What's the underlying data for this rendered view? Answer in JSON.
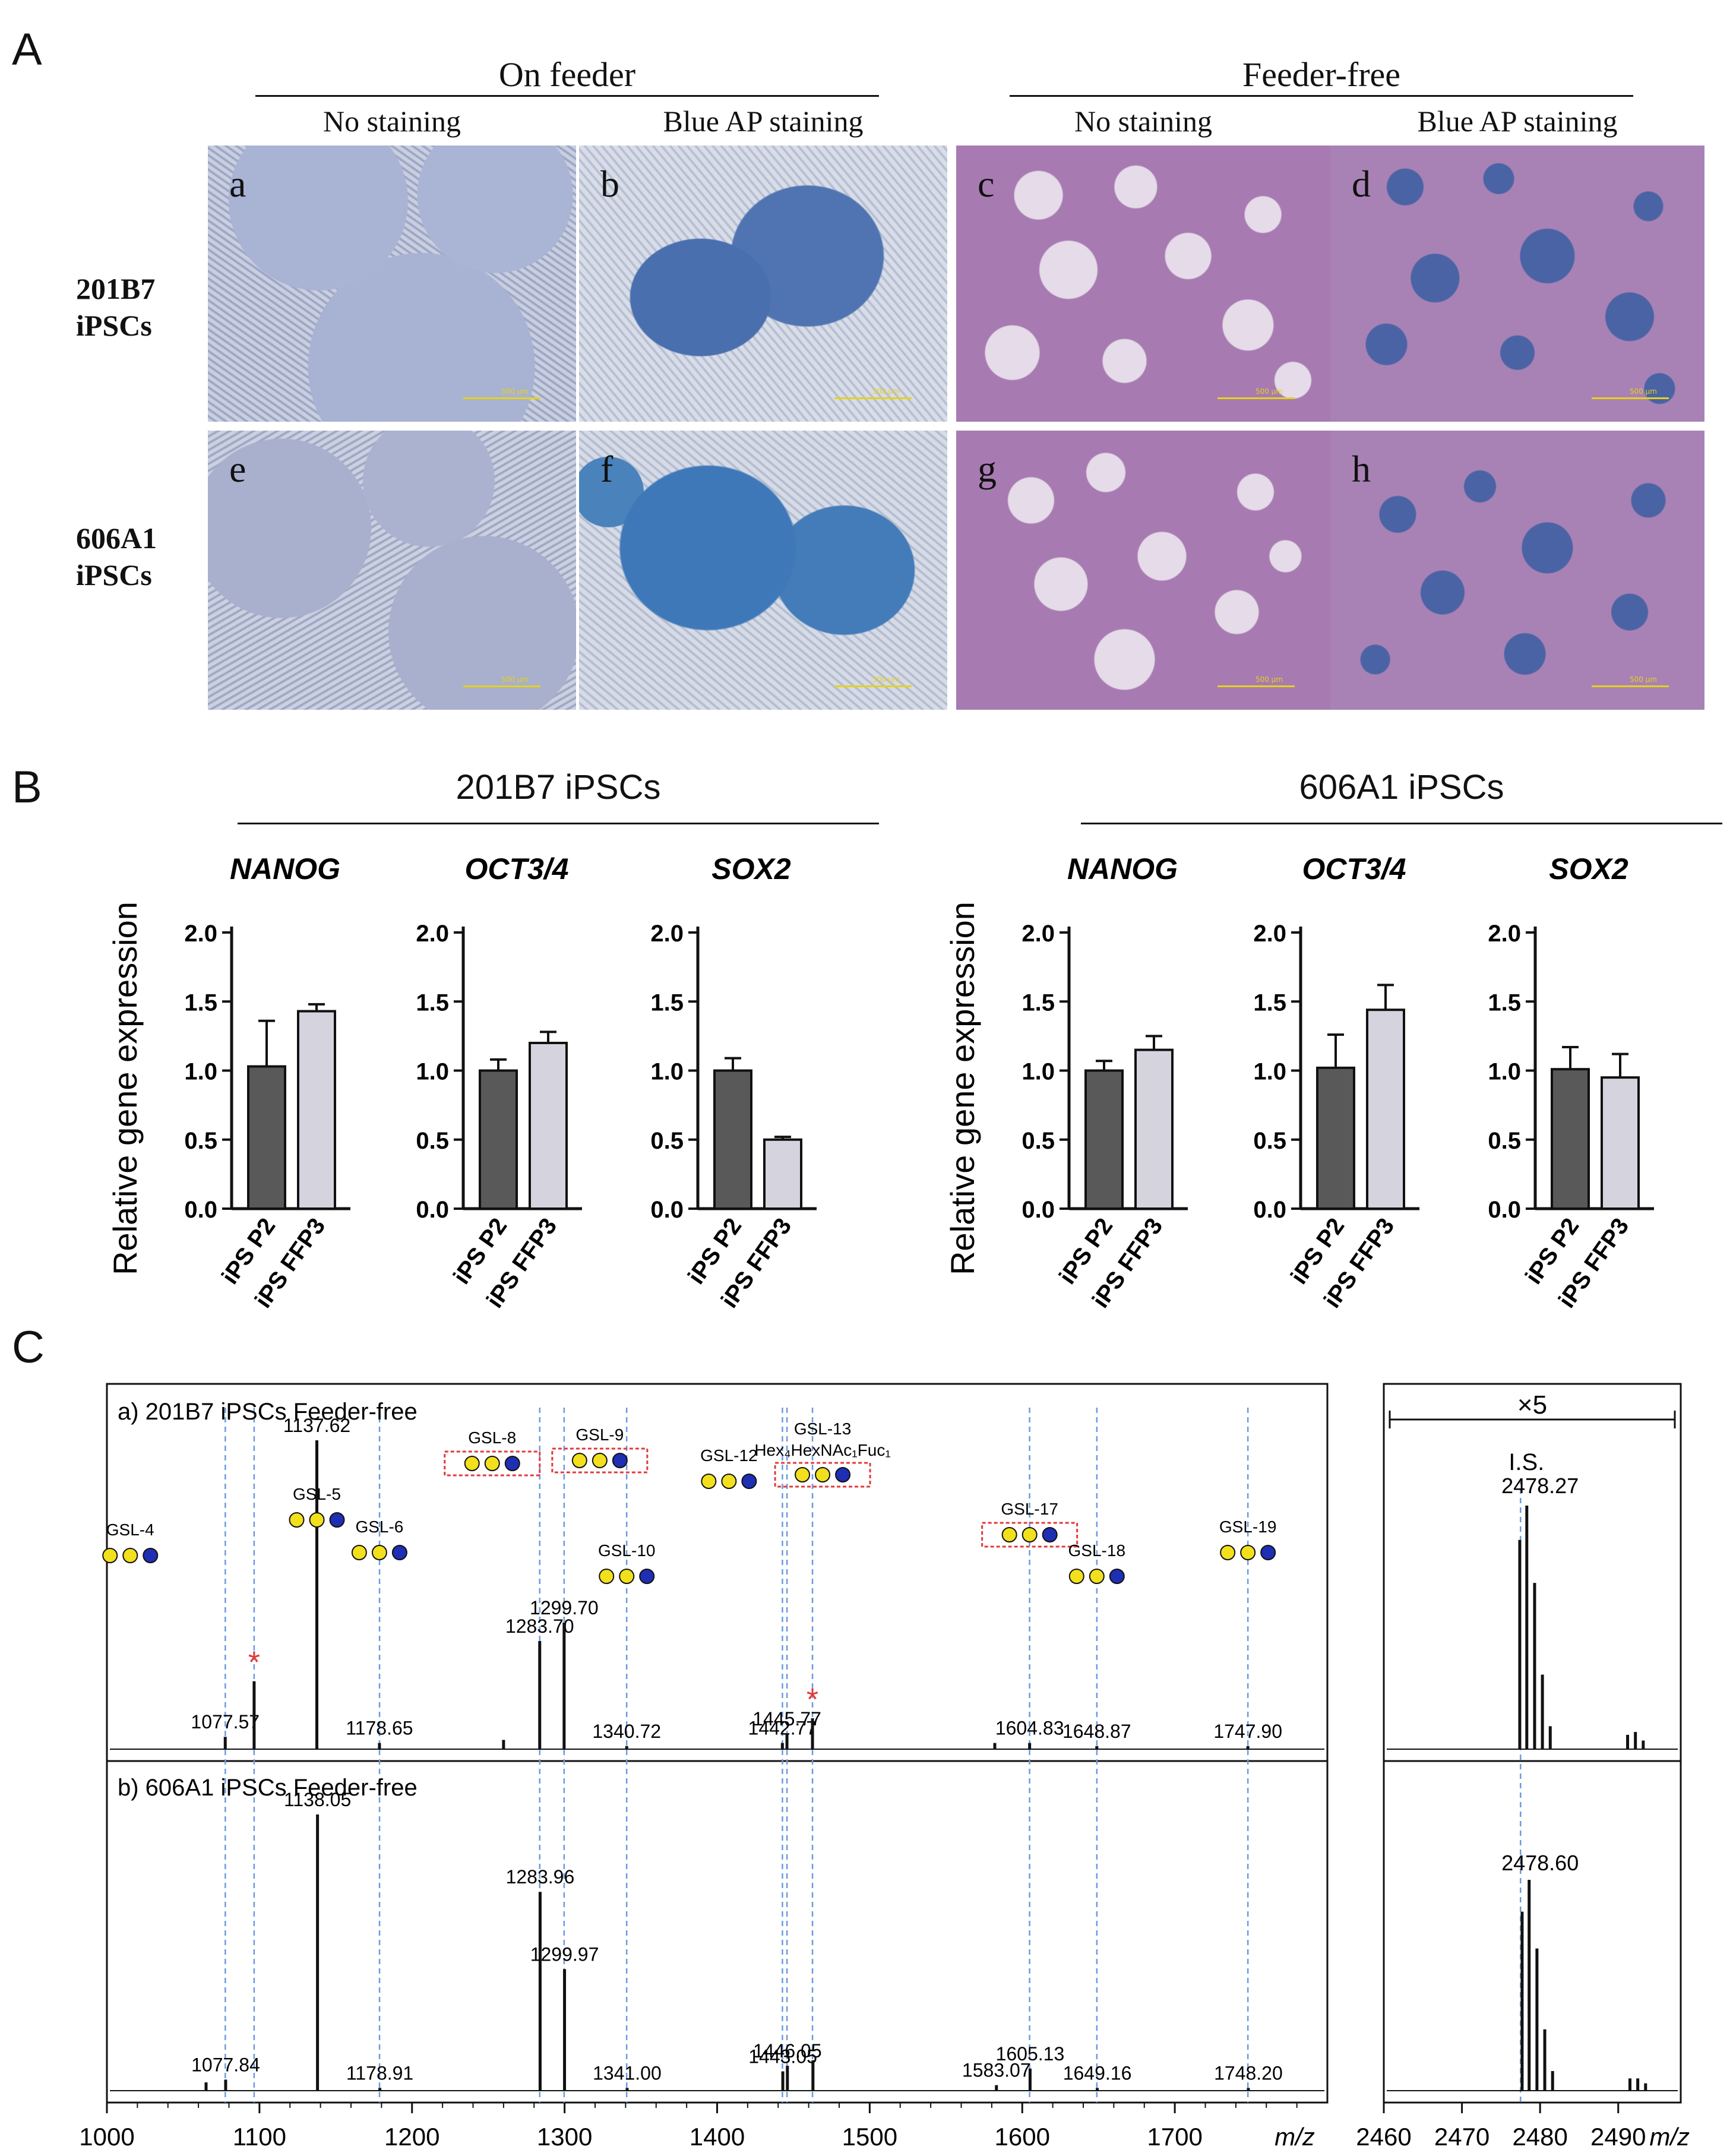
{
  "panels": {
    "A": "A",
    "B": "B",
    "C": "C"
  },
  "panelA": {
    "groups": [
      "On feeder",
      "Feeder-free"
    ],
    "conditions": [
      "No staining",
      "Blue AP staining",
      "No staining",
      "Blue AP staining"
    ],
    "rows": [
      {
        "line1": "201B7",
        "line2": "iPSCs"
      },
      {
        "line1": "606A1",
        "line2": "iPSCs"
      }
    ],
    "tiles": [
      "a",
      "b",
      "c",
      "d",
      "e",
      "f",
      "g",
      "h"
    ],
    "scalebar_text": "500 µm"
  },
  "panelB": {
    "groups": [
      "201B7 iPSCs",
      "606A1 iPSCs"
    ],
    "ylabel": "Relative gene expression",
    "ylim": [
      0,
      2.0
    ],
    "yticks": [
      "0.0",
      "0.5",
      "1.0",
      "1.5",
      "2.0"
    ],
    "categories": [
      "iPS P2",
      "iPS FFP3"
    ],
    "colors": {
      "p2": "#595959",
      "ffp3": "#d5d4de"
    }
  },
  "chart_data": [
    {
      "type": "bar",
      "title": "NANOG",
      "group": "201B7 iPSCs",
      "categories": [
        "iPS P2",
        "iPS FFP3"
      ],
      "values": [
        1.03,
        1.43
      ],
      "errors": [
        0.33,
        0.05
      ],
      "ylim": [
        0,
        2.0
      ]
    },
    {
      "type": "bar",
      "title": "OCT3/4",
      "group": "201B7 iPSCs",
      "categories": [
        "iPS P2",
        "iPS FFP3"
      ],
      "values": [
        1.0,
        1.2
      ],
      "errors": [
        0.08,
        0.08
      ],
      "ylim": [
        0,
        2.0
      ]
    },
    {
      "type": "bar",
      "title": "SOX2",
      "group": "201B7 iPSCs",
      "categories": [
        "iPS P2",
        "iPS FFP3"
      ],
      "values": [
        1.0,
        0.5
      ],
      "errors": [
        0.09,
        0.02
      ],
      "ylim": [
        0,
        2.0
      ]
    },
    {
      "type": "bar",
      "title": "NANOG",
      "group": "606A1 iPSCs",
      "categories": [
        "iPS P2",
        "iPS FFP3"
      ],
      "values": [
        1.0,
        1.15
      ],
      "errors": [
        0.07,
        0.1
      ],
      "ylim": [
        0,
        2.0
      ]
    },
    {
      "type": "bar",
      "title": "OCT3/4",
      "group": "606A1 iPSCs",
      "categories": [
        "iPS P2",
        "iPS FFP3"
      ],
      "values": [
        1.02,
        1.44
      ],
      "errors": [
        0.24,
        0.18
      ],
      "ylim": [
        0,
        2.0
      ]
    },
    {
      "type": "bar",
      "title": "SOX2",
      "group": "606A1 iPSCs",
      "categories": [
        "iPS P2",
        "iPS FFP3"
      ],
      "values": [
        1.01,
        0.95
      ],
      "errors": [
        0.16,
        0.17
      ],
      "ylim": [
        0,
        2.0
      ]
    },
    {
      "type": "line",
      "subtype": "mass-spectrum",
      "xlabel": "m/z",
      "xlim": [
        1000,
        1800
      ],
      "xticks": [
        "1000",
        "1100",
        "1200",
        "1300",
        "1400",
        "1500",
        "1600",
        "1700"
      ],
      "dashed_lines": [
        1077.6,
        1096.5,
        1178.7,
        1283.7,
        1299.7,
        1340.7,
        1442.8,
        1445.8,
        1462.5,
        1604.8,
        1648.9,
        1747.9
      ],
      "spectra": [
        {
          "name": "a) 201B7 iPSCs Feeder-free",
          "peaks": [
            {
              "mz": 1077.57,
              "rel": 0.04,
              "label": "1077.57"
            },
            {
              "mz": 1096.5,
              "rel": 0.22,
              "label": "",
              "star": true
            },
            {
              "mz": 1137.62,
              "rel": 1.0,
              "label": "1137.62"
            },
            {
              "mz": 1178.65,
              "rel": 0.02,
              "label": "1178.65"
            },
            {
              "mz": 1260.0,
              "rel": 0.03,
              "label": ""
            },
            {
              "mz": 1283.7,
              "rel": 0.35,
              "label": "1283.70"
            },
            {
              "mz": 1299.7,
              "rel": 0.41,
              "label": "1299.70"
            },
            {
              "mz": 1340.72,
              "rel": 0.01,
              "label": "1340.72"
            },
            {
              "mz": 1442.77,
              "rel": 0.02,
              "label": "1442.77"
            },
            {
              "mz": 1445.77,
              "rel": 0.05,
              "label": "1445.77"
            },
            {
              "mz": 1462.5,
              "rel": 0.1,
              "label": "",
              "star": true
            },
            {
              "mz": 1582.0,
              "rel": 0.02,
              "label": ""
            },
            {
              "mz": 1604.83,
              "rel": 0.02,
              "label": "1604.83"
            },
            {
              "mz": 1648.87,
              "rel": 0.01,
              "label": "1648.87"
            },
            {
              "mz": 1747.9,
              "rel": 0.01,
              "label": "1747.90"
            }
          ],
          "annotations": [
            {
              "name": "GSL-4",
              "mz": 1077.57
            },
            {
              "name": "GSL-5",
              "mz": 1137.62
            },
            {
              "name": "GSL-6",
              "mz": 1178.65
            },
            {
              "name": "GSL-8",
              "mz": 1283.7,
              "boxed": true
            },
            {
              "name": "GSL-9",
              "mz": 1299.7,
              "boxed": true
            },
            {
              "name": "GSL-10",
              "mz": 1340.72
            },
            {
              "name": "GSL-12",
              "mz": 1442.77
            },
            {
              "name": "GSL-13",
              "mz": 1445.77,
              "boxed": true,
              "composition": "Hex₄HexNAc₁Fuc₁"
            },
            {
              "name": "GSL-17",
              "mz": 1604.83,
              "boxed": true
            },
            {
              "name": "GSL-18",
              "mz": 1648.87
            },
            {
              "name": "GSL-19",
              "mz": 1747.9
            }
          ]
        },
        {
          "name": "b) 606A1 iPSCs Feeder-free",
          "peaks": [
            {
              "mz": 1065.0,
              "rel": 0.03,
              "label": ""
            },
            {
              "mz": 1077.84,
              "rel": 0.04,
              "label": "1077.84"
            },
            {
              "mz": 1138.05,
              "rel": 1.0,
              "label": "1138.05"
            },
            {
              "mz": 1178.91,
              "rel": 0.01,
              "label": "1178.91"
            },
            {
              "mz": 1283.96,
              "rel": 0.72,
              "label": "1283.96"
            },
            {
              "mz": 1299.97,
              "rel": 0.44,
              "label": "1299.97"
            },
            {
              "mz": 1341.0,
              "rel": 0.01,
              "label": "1341.00"
            },
            {
              "mz": 1443.05,
              "rel": 0.07,
              "label": "1443.05"
            },
            {
              "mz": 1446.05,
              "rel": 0.09,
              "label": "1446.05"
            },
            {
              "mz": 1462.8,
              "rel": 0.11,
              "label": ""
            },
            {
              "mz": 1583.07,
              "rel": 0.02,
              "label": "1583.07"
            },
            {
              "mz": 1605.13,
              "rel": 0.08,
              "label": "1605.13"
            },
            {
              "mz": 1649.16,
              "rel": 0.01,
              "label": "1649.16"
            },
            {
              "mz": 1748.2,
              "rel": 0.01,
              "label": "1748.20"
            }
          ]
        }
      ]
    },
    {
      "type": "line",
      "subtype": "mass-spectrum-inset",
      "xlabel": "m/z",
      "xlim": [
        2460,
        2498
      ],
      "xticks": [
        "2460",
        "2470",
        "2480",
        "2490"
      ],
      "zoom": "×5",
      "internal_standard": "I.S.",
      "dashed_line": 2477.5,
      "spectra": [
        {
          "label": "2478.27",
          "peaks": [
            [
              2477.4,
              0.73
            ],
            [
              2478.3,
              0.85
            ],
            [
              2479.3,
              0.58
            ],
            [
              2480.3,
              0.26
            ],
            [
              2481.3,
              0.08
            ],
            [
              2491.2,
              0.05
            ],
            [
              2492.2,
              0.06
            ],
            [
              2493.2,
              0.03
            ]
          ]
        },
        {
          "label": "2478.60",
          "peaks": [
            [
              2477.7,
              0.73
            ],
            [
              2478.6,
              0.86
            ],
            [
              2479.6,
              0.58
            ],
            [
              2480.6,
              0.25
            ],
            [
              2481.6,
              0.08
            ],
            [
              2491.5,
              0.05
            ],
            [
              2492.5,
              0.05
            ],
            [
              2493.5,
              0.03
            ]
          ]
        }
      ]
    }
  ]
}
